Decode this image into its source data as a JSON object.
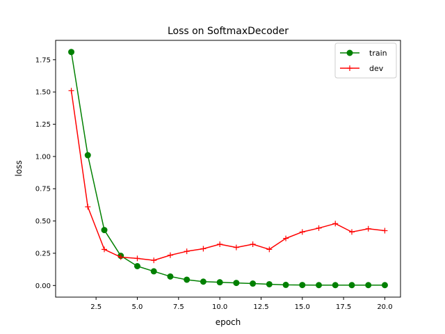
{
  "chart_data": {
    "type": "line",
    "title": "Loss on SoftmaxDecoder",
    "xlabel": "epoch",
    "ylabel": "loss",
    "xlim": [
      0.05,
      20.95
    ],
    "ylim": [
      -0.09,
      1.9
    ],
    "x_ticks": [
      2.5,
      5.0,
      7.5,
      10.0,
      12.5,
      15.0,
      17.5,
      20.0
    ],
    "x_tick_labels": [
      "2.5",
      "5.0",
      "7.5",
      "10.0",
      "12.5",
      "15.0",
      "17.5",
      "20.0"
    ],
    "y_ticks": [
      0.0,
      0.25,
      0.5,
      0.75,
      1.0,
      1.25,
      1.5,
      1.75
    ],
    "y_tick_labels": [
      "0.00",
      "0.25",
      "0.50",
      "0.75",
      "1.00",
      "1.25",
      "1.50",
      "1.75"
    ],
    "grid": false,
    "legend_position": "top-right",
    "x": [
      1,
      2,
      3,
      4,
      5,
      6,
      7,
      8,
      9,
      10,
      11,
      12,
      13,
      14,
      15,
      16,
      17,
      18,
      19,
      20
    ],
    "series": [
      {
        "name": "train",
        "color": "#008000",
        "marker": "circle",
        "values": [
          1.81,
          1.01,
          0.43,
          0.23,
          0.15,
          0.11,
          0.07,
          0.045,
          0.03,
          0.025,
          0.02,
          0.015,
          0.01,
          0.005,
          0.004,
          0.003,
          0.003,
          0.003,
          0.003,
          0.003
        ]
      },
      {
        "name": "dev",
        "color": "#ff0000",
        "marker": "plus",
        "values": [
          1.51,
          0.61,
          0.28,
          0.22,
          0.21,
          0.195,
          0.235,
          0.265,
          0.285,
          0.32,
          0.295,
          0.32,
          0.28,
          0.365,
          0.415,
          0.445,
          0.48,
          0.415,
          0.44,
          0.425
        ]
      }
    ]
  }
}
